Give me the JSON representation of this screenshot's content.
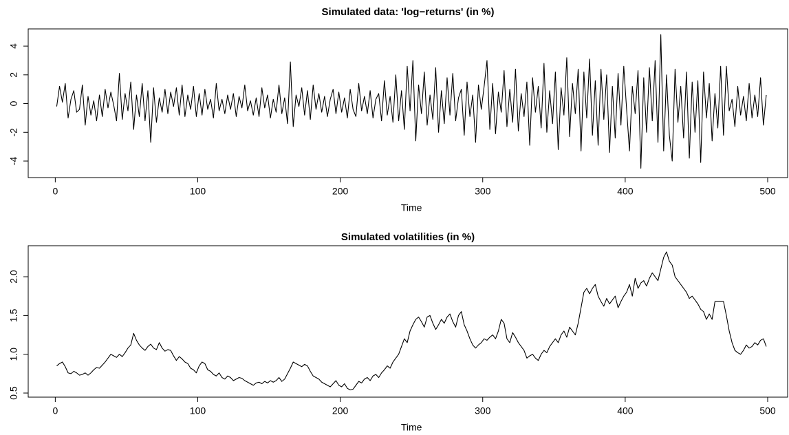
{
  "chart_data": [
    {
      "type": "line",
      "title": "Simulated data: 'log−returns' (in %)",
      "xlabel": "Time",
      "color": "#000000",
      "xlim": [
        -19,
        514
      ],
      "xticks": [
        0,
        100,
        200,
        300,
        400,
        500
      ],
      "ylim": [
        -5.15,
        5.2
      ],
      "yticks": [
        -4,
        -2,
        0,
        2,
        4
      ],
      "x": [
        1,
        3,
        5,
        7,
        9,
        11,
        13,
        15,
        17,
        19,
        21,
        23,
        25,
        27,
        29,
        31,
        33,
        35,
        37,
        39,
        41,
        43,
        45,
        47,
        49,
        51,
        53,
        55,
        57,
        59,
        61,
        63,
        65,
        67,
        69,
        71,
        73,
        75,
        77,
        79,
        81,
        83,
        85,
        87,
        89,
        91,
        93,
        95,
        97,
        99,
        101,
        103,
        105,
        107,
        109,
        111,
        113,
        115,
        117,
        119,
        121,
        123,
        125,
        127,
        129,
        131,
        133,
        135,
        137,
        139,
        141,
        143,
        145,
        147,
        149,
        151,
        153,
        155,
        157,
        159,
        161,
        163,
        165,
        167,
        169,
        171,
        173,
        175,
        177,
        179,
        181,
        183,
        185,
        187,
        189,
        191,
        193,
        195,
        197,
        199,
        201,
        203,
        205,
        207,
        209,
        211,
        213,
        215,
        217,
        219,
        221,
        223,
        225,
        227,
        229,
        231,
        233,
        235,
        237,
        239,
        241,
        243,
        245,
        247,
        249,
        251,
        253,
        255,
        257,
        259,
        261,
        263,
        265,
        267,
        269,
        271,
        273,
        275,
        277,
        279,
        281,
        283,
        285,
        287,
        289,
        291,
        293,
        295,
        297,
        299,
        301,
        303,
        305,
        307,
        309,
        311,
        313,
        315,
        317,
        319,
        321,
        323,
        325,
        327,
        329,
        331,
        333,
        335,
        337,
        339,
        341,
        343,
        345,
        347,
        349,
        351,
        353,
        355,
        357,
        359,
        361,
        363,
        365,
        367,
        369,
        371,
        373,
        375,
        377,
        379,
        381,
        383,
        385,
        387,
        389,
        391,
        393,
        395,
        397,
        399,
        401,
        403,
        405,
        407,
        409,
        411,
        413,
        415,
        417,
        419,
        421,
        423,
        425,
        427,
        429,
        431,
        433,
        435,
        437,
        439,
        441,
        443,
        445,
        447,
        449,
        451,
        453,
        455,
        457,
        459,
        461,
        463,
        465,
        467,
        469,
        471,
        473,
        475,
        477,
        479,
        481,
        483,
        485,
        487,
        489,
        491,
        493,
        495,
        497,
        499
      ],
      "values": [
        -0.2,
        1.2,
        0.1,
        1.4,
        -1.0,
        0.3,
        0.9,
        -0.6,
        -0.4,
        1.3,
        -1.5,
        0.5,
        -0.8,
        0.2,
        -1.2,
        0.6,
        -0.9,
        1.0,
        -0.3,
        0.8,
        -0.1,
        -1.2,
        2.1,
        -1.1,
        0.7,
        -0.5,
        1.5,
        -1.8,
        0.6,
        -0.9,
        1.4,
        -1.2,
        0.9,
        -2.7,
        1.1,
        -1.3,
        0.4,
        -0.6,
        1.0,
        -0.7,
        0.8,
        -0.2,
        1.1,
        -0.8,
        1.3,
        -0.9,
        0.6,
        -0.4,
        1.2,
        -0.9,
        0.7,
        -0.8,
        1.0,
        -0.4,
        0.3,
        -1.0,
        1.4,
        -0.5,
        0.3,
        -0.7,
        0.6,
        -0.4,
        0.7,
        -0.9,
        0.5,
        -0.3,
        1.3,
        -0.5,
        0.2,
        -0.8,
        0.4,
        -0.9,
        1.1,
        -0.3,
        0.6,
        -1.0,
        0.3,
        -0.6,
        1.3,
        -0.7,
        0.4,
        -1.4,
        2.9,
        -1.6,
        0.6,
        -0.2,
        1.1,
        -0.8,
        0.9,
        -1.1,
        1.3,
        -0.4,
        0.7,
        -0.6,
        0.5,
        -0.9,
        0.3,
        1.0,
        -0.7,
        0.8,
        -0.6,
        0.4,
        -1.0,
        1.0,
        -0.4,
        -0.9,
        1.4,
        -0.5,
        0.5,
        -0.7,
        0.9,
        -1.0,
        0.3,
        0.7,
        -1.2,
        1.6,
        -0.8,
        0.5,
        -1.3,
        2.0,
        -1.2,
        0.9,
        -1.8,
        2.6,
        -0.5,
        3.0,
        -2.6,
        1.3,
        -0.7,
        2.2,
        -1.5,
        0.6,
        -1.1,
        2.5,
        -2.0,
        0.9,
        -1.4,
        1.8,
        -0.8,
        2.1,
        -1.2,
        0.4,
        1.0,
        -2.2,
        1.5,
        -0.9,
        0.6,
        -2.7,
        1.3,
        -0.4,
        1.2,
        3.0,
        -1.8,
        1.4,
        -2.1,
        0.8,
        -0.6,
        2.3,
        -1.6,
        1.0,
        -1.3,
        2.4,
        -1.9,
        0.7,
        -0.9,
        1.5,
        -2.9,
        1.8,
        -0.6,
        1.2,
        -1.7,
        2.8,
        -2.0,
        0.9,
        -1.4,
        2.2,
        -3.2,
        1.1,
        -0.8,
        3.2,
        -2.3,
        1.4,
        -0.7,
        2.4,
        -3.3,
        2.2,
        -1.0,
        3.1,
        -2.2,
        1.6,
        -2.9,
        2.4,
        -1.1,
        2.0,
        -3.4,
        1.2,
        -2.4,
        2.1,
        -1.5,
        2.6,
        -0.4,
        -3.3,
        1.2,
        -0.7,
        2.3,
        -4.5,
        1.8,
        -2.0,
        2.5,
        -1.2,
        3.0,
        -2.7,
        4.8,
        -3.3,
        2.0,
        -2.2,
        -4.0,
        2.4,
        -1.3,
        1.2,
        -2.4,
        2.2,
        -3.8,
        1.5,
        -2.0,
        1.6,
        -4.1,
        2.2,
        -1.0,
        1.4,
        -2.6,
        0.7,
        -1.7,
        2.6,
        -2.2,
        2.6,
        -0.5,
        0.3,
        -1.6,
        1.2,
        -0.8,
        0.5,
        -1.2,
        1.4,
        -1.0,
        0.6,
        -0.9,
        1.8,
        -1.5,
        0.6
      ]
    },
    {
      "type": "line",
      "title": "Simulated volatilities (in %)",
      "xlabel": "Time",
      "color": "#000000",
      "xlim": [
        -19,
        514
      ],
      "xticks": [
        0,
        100,
        200,
        300,
        400,
        500
      ],
      "ylim": [
        0.447,
        2.4
      ],
      "yticks": [
        0.5,
        {
          "value": 1,
          "label": "1.0"
        },
        1.5,
        {
          "value": 2,
          "label": "2.0"
        }
      ],
      "x": [
        1,
        3,
        5,
        7,
        9,
        11,
        13,
        15,
        17,
        19,
        21,
        23,
        25,
        27,
        29,
        31,
        33,
        35,
        37,
        39,
        41,
        43,
        45,
        47,
        49,
        51,
        53,
        55,
        57,
        59,
        61,
        63,
        65,
        67,
        69,
        71,
        73,
        75,
        77,
        79,
        81,
        83,
        85,
        87,
        89,
        91,
        93,
        95,
        97,
        99,
        101,
        103,
        105,
        107,
        109,
        111,
        113,
        115,
        117,
        119,
        121,
        123,
        125,
        127,
        129,
        131,
        133,
        135,
        137,
        139,
        141,
        143,
        145,
        147,
        149,
        151,
        153,
        155,
        157,
        159,
        161,
        163,
        165,
        167,
        169,
        171,
        173,
        175,
        177,
        179,
        181,
        183,
        185,
        187,
        189,
        191,
        193,
        195,
        197,
        199,
        201,
        203,
        205,
        207,
        209,
        211,
        213,
        215,
        217,
        219,
        221,
        223,
        225,
        227,
        229,
        231,
        233,
        235,
        237,
        239,
        241,
        243,
        245,
        247,
        249,
        251,
        253,
        255,
        257,
        259,
        261,
        263,
        265,
        267,
        269,
        271,
        273,
        275,
        277,
        279,
        281,
        283,
        285,
        287,
        289,
        291,
        293,
        295,
        297,
        299,
        301,
        303,
        305,
        307,
        309,
        311,
        313,
        315,
        317,
        319,
        321,
        323,
        325,
        327,
        329,
        331,
        333,
        335,
        337,
        339,
        341,
        343,
        345,
        347,
        349,
        351,
        353,
        355,
        357,
        359,
        361,
        363,
        365,
        367,
        369,
        371,
        373,
        375,
        377,
        379,
        381,
        383,
        385,
        387,
        389,
        391,
        393,
        395,
        397,
        399,
        401,
        403,
        405,
        407,
        409,
        411,
        413,
        415,
        417,
        419,
        421,
        423,
        425,
        427,
        429,
        431,
        433,
        435,
        437,
        439,
        441,
        443,
        445,
        447,
        449,
        451,
        453,
        455,
        457,
        459,
        461,
        463,
        465,
        467,
        469,
        471,
        473,
        475,
        477,
        479,
        481,
        483,
        485,
        487,
        489,
        491,
        493,
        495,
        497,
        499
      ],
      "values": [
        0.85,
        0.88,
        0.9,
        0.84,
        0.76,
        0.75,
        0.78,
        0.76,
        0.73,
        0.74,
        0.76,
        0.73,
        0.76,
        0.8,
        0.83,
        0.82,
        0.86,
        0.9,
        0.95,
        1.0,
        0.98,
        0.96,
        1.0,
        0.97,
        1.02,
        1.08,
        1.12,
        1.27,
        1.18,
        1.12,
        1.08,
        1.05,
        1.1,
        1.13,
        1.08,
        1.06,
        1.15,
        1.08,
        1.04,
        1.06,
        1.05,
        0.98,
        0.92,
        0.97,
        0.94,
        0.9,
        0.88,
        0.82,
        0.8,
        0.76,
        0.85,
        0.9,
        0.88,
        0.8,
        0.78,
        0.74,
        0.72,
        0.76,
        0.7,
        0.68,
        0.72,
        0.7,
        0.66,
        0.68,
        0.7,
        0.69,
        0.66,
        0.64,
        0.62,
        0.6,
        0.63,
        0.64,
        0.62,
        0.65,
        0.63,
        0.66,
        0.64,
        0.66,
        0.7,
        0.65,
        0.68,
        0.75,
        0.82,
        0.9,
        0.88,
        0.86,
        0.84,
        0.87,
        0.85,
        0.78,
        0.72,
        0.7,
        0.68,
        0.64,
        0.62,
        0.6,
        0.58,
        0.62,
        0.66,
        0.6,
        0.58,
        0.62,
        0.56,
        0.54,
        0.55,
        0.6,
        0.65,
        0.63,
        0.68,
        0.7,
        0.66,
        0.72,
        0.74,
        0.7,
        0.76,
        0.8,
        0.85,
        0.82,
        0.9,
        0.95,
        1.0,
        1.1,
        1.2,
        1.15,
        1.3,
        1.38,
        1.45,
        1.48,
        1.42,
        1.35,
        1.48,
        1.5,
        1.4,
        1.32,
        1.38,
        1.45,
        1.4,
        1.48,
        1.52,
        1.42,
        1.35,
        1.5,
        1.55,
        1.38,
        1.3,
        1.2,
        1.12,
        1.08,
        1.12,
        1.15,
        1.2,
        1.18,
        1.22,
        1.25,
        1.2,
        1.3,
        1.45,
        1.4,
        1.2,
        1.15,
        1.28,
        1.22,
        1.15,
        1.1,
        1.05,
        0.95,
        0.98,
        1.0,
        0.95,
        0.92,
        1.0,
        1.05,
        1.02,
        1.1,
        1.15,
        1.2,
        1.15,
        1.25,
        1.3,
        1.22,
        1.35,
        1.3,
        1.25,
        1.4,
        1.6,
        1.8,
        1.85,
        1.78,
        1.85,
        1.9,
        1.75,
        1.68,
        1.62,
        1.72,
        1.65,
        1.7,
        1.75,
        1.6,
        1.68,
        1.75,
        1.8,
        1.9,
        1.75,
        1.98,
        1.85,
        1.92,
        1.95,
        1.88,
        1.98,
        2.05,
        2.0,
        1.95,
        2.1,
        2.25,
        2.32,
        2.2,
        2.15,
        2.0,
        1.95,
        1.9,
        1.85,
        1.8,
        1.72,
        1.75,
        1.7,
        1.65,
        1.58,
        1.55,
        1.45,
        1.52,
        1.45,
        1.68,
        1.68,
        1.68,
        1.68,
        1.5,
        1.3,
        1.15,
        1.05,
        1.02,
        1.0,
        1.05,
        1.12,
        1.08,
        1.1,
        1.15,
        1.12,
        1.18,
        1.2,
        1.1
      ]
    }
  ]
}
